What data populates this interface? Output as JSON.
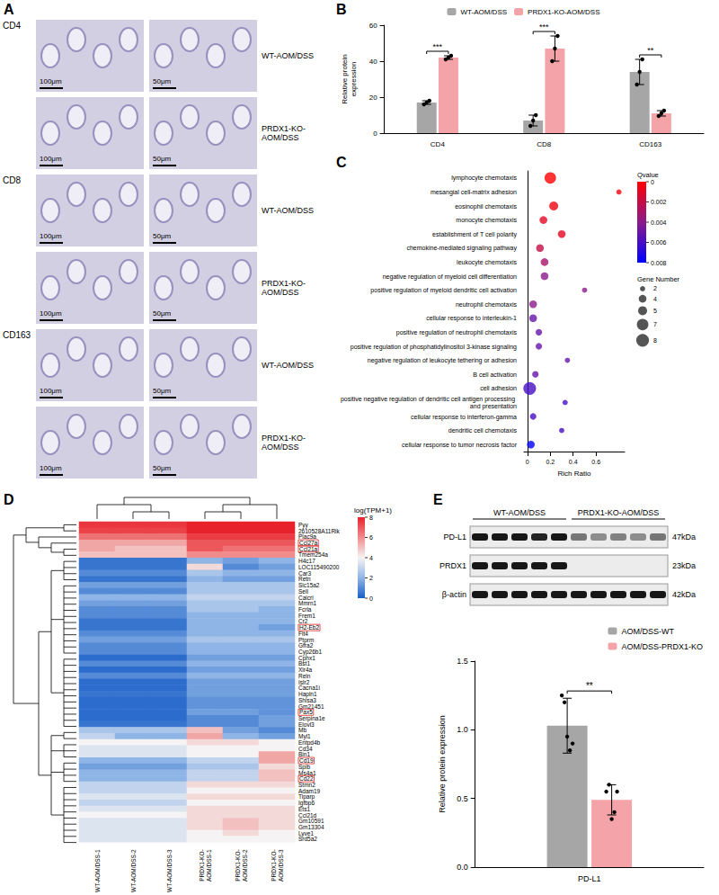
{
  "panel_letters": [
    "A",
    "B",
    "C",
    "D",
    "E"
  ],
  "panel_A": {
    "markers": [
      "CD4",
      "CD8",
      "CD163"
    ],
    "groups": [
      "WT-AOM/DSS",
      "PRDX1-KO-AOM/DSS"
    ],
    "scale_bars": [
      "100μm",
      "50μm"
    ]
  },
  "chart_data": [
    {
      "type": "bar",
      "ylabel": "Relative protein expression",
      "categories": [
        "CD4",
        "CD8",
        "CD163"
      ],
      "series": [
        {
          "name": "WT-AOM/DSS",
          "color": "#a6a6a6",
          "values": [
            17,
            7,
            34
          ],
          "errors": [
            1,
            3,
            7
          ],
          "points": [
            [
              16,
              17,
              18
            ],
            [
              4,
              7,
              10
            ],
            [
              27,
              34,
              41
            ]
          ]
        },
        {
          "name": "PRDX1-KO-AOM/DSS",
          "color": "#f4a3a8",
          "values": [
            42,
            47,
            11
          ],
          "errors": [
            1,
            7,
            1.5
          ],
          "points": [
            [
              41,
              42,
              43
            ],
            [
              40,
              47,
              54
            ],
            [
              9.5,
              11,
              12.5
            ]
          ]
        }
      ],
      "ylim": [
        0,
        60
      ],
      "yticks": [
        0,
        20,
        40,
        60
      ],
      "grid": false,
      "legend": "top",
      "annotations": [
        {
          "category": "CD4",
          "text": "***"
        },
        {
          "category": "CD8",
          "text": "***"
        },
        {
          "category": "CD163",
          "text": "**"
        }
      ]
    },
    {
      "type": "scatter",
      "xlabel": "Rich Ratio",
      "categories": [
        "lymphocyte chemotaxis",
        "mesangial cell-matrix adhesion",
        "eosinophil chemotaxis",
        "monocyte chemotaxis",
        "establishment of T cell polarity",
        "chemokine-mediated signaling pathway",
        "leukocyte chemotaxis",
        "negative regulation of myeloid cell differentiation",
        "positive regulation of myeloid dendritic cell activation",
        "neutrophil chemotaxis",
        "cellular response to interleukin-1",
        "positive regulation of neutrophil chemotaxis",
        "positive regulation of phosphatidylinositol 3-kinase signaling",
        "negative regulation of leukocyte tethering or adhesion",
        "B cell activation",
        "cell adhesion",
        "positive negative regulation of dendritic cell antigen processing and presentation",
        "cellular response to interferon-gamma",
        "dendritic cell chemotaxis",
        "cellular response to tumor necrosis factor"
      ],
      "x": [
        0.2,
        0.8,
        0.23,
        0.14,
        0.3,
        0.11,
        0.15,
        0.15,
        0.5,
        0.05,
        0.05,
        0.1,
        0.1,
        0.35,
        0.07,
        0.02,
        0.33,
        0.05,
        0.3,
        0.03
      ],
      "qvalues": [
        0,
        0.0003,
        0.0005,
        0.001,
        0.001,
        0.002,
        0.003,
        0.004,
        0.004,
        0.004,
        0.005,
        0.005,
        0.005,
        0.005,
        0.005,
        0.006,
        0.006,
        0.006,
        0.006,
        0.008
      ],
      "gene_numbers": [
        7,
        2,
        5,
        4,
        4,
        4,
        4,
        4,
        2,
        4,
        4,
        3,
        3,
        2,
        3,
        8,
        2,
        3,
        2,
        4
      ],
      "colorbar": {
        "title": "Qvalue",
        "range": [
          0,
          0.008
        ],
        "ticks": [
          0,
          0.002,
          0.004,
          0.006,
          0.008
        ]
      },
      "size_legend": {
        "title": "Gene Number",
        "values": [
          2,
          4,
          5,
          7,
          8
        ]
      },
      "xlim": [
        -0.03,
        0.85
      ],
      "xticks": [
        0,
        0.2,
        0.4,
        0.6
      ],
      "grid": false
    },
    {
      "type": "heatmap",
      "samples": [
        "WT-AOM/DSS-1",
        "WT-AOM/DSS-2",
        "WT-AOM/DSS-3",
        "PRDX1-KO-AOM/DSS-1",
        "PRDX1-KO-AOM/DSS-2",
        "PRDX1-KO-AOM/DSS-3"
      ],
      "genes": [
        "Pyy",
        "2610528A11Rik",
        "Plac9a",
        "Ccl27a",
        "Ccl21a",
        "Tmem254a",
        "H4c17",
        "LOC115490200",
        "Car3",
        "Retn",
        "Slc15a2",
        "Sell",
        "Calcrl",
        "Mmrn1",
        "Fcrla",
        "Frem1",
        "Cr2",
        "H2-Eb2",
        "Flt4",
        "Ptprm",
        "Gfra2",
        "Cyp26b1",
        "Cphx1",
        "Bst1",
        "Xlr4a",
        "Reln",
        "Islr2",
        "Cacna1i",
        "Hapln1",
        "Shisa3",
        "Gm21451",
        "Pax5",
        "Serpina1e",
        "Elovl3",
        "Mb",
        "Myl1",
        "Entpd4b",
        "Cd34",
        "Bin1",
        "Cd19",
        "Spib",
        "Ms4a1",
        "Cd22",
        "Stmn2",
        "Adam19",
        "Tiparp",
        "Igfbp6",
        "Ets1",
        "Ccl21d",
        "Gm10591",
        "Gm13304",
        "Lyve1",
        "Srd5a2"
      ],
      "boxed": [
        "Ccl27a",
        "Ccl21a",
        "H2-Eb2",
        "Pax5",
        "Cd19",
        "Cd22"
      ],
      "cells": [
        [
          7.6,
          7.6,
          7.6,
          8,
          8,
          8
        ],
        [
          7.4,
          7.4,
          7.4,
          8,
          8,
          8
        ],
        [
          6.5,
          6.5,
          6.5,
          7.5,
          7.5,
          7.5
        ],
        [
          5.5,
          5.5,
          5.5,
          7,
          7,
          7
        ],
        [
          5.5,
          5,
          5,
          7,
          6.5,
          6.5
        ],
        [
          5,
          5,
          5,
          6,
          6,
          6
        ],
        [
          0.5,
          0.5,
          0.5,
          2,
          1.5,
          2
        ],
        [
          0.5,
          0.5,
          0.5,
          4.5,
          1,
          1.5
        ],
        [
          1,
          1,
          1,
          2.5,
          2,
          2
        ],
        [
          0.5,
          0.5,
          0.5,
          2,
          1.5,
          1.5
        ],
        [
          1.5,
          1.5,
          1.5,
          2.5,
          2.5,
          2.5
        ],
        [
          1,
          1,
          1,
          2.5,
          2.5,
          2.5
        ],
        [
          2,
          2,
          2,
          3,
          3,
          3
        ],
        [
          1.5,
          1.5,
          1.5,
          2.5,
          2.5,
          2.5
        ],
        [
          1,
          1,
          1,
          2.5,
          2.5,
          2
        ],
        [
          1,
          1,
          1,
          2,
          2,
          2
        ],
        [
          0.5,
          0.5,
          0.5,
          2,
          2,
          2
        ],
        [
          0.5,
          0.5,
          0.5,
          2,
          2,
          1.5
        ],
        [
          1,
          1,
          1,
          2,
          2,
          2
        ],
        [
          1.5,
          1.5,
          1.5,
          2.5,
          2.5,
          2.5
        ],
        [
          1,
          1,
          1,
          2,
          2,
          2
        ],
        [
          1,
          1,
          1,
          2,
          2,
          2
        ],
        [
          0.3,
          0.3,
          0.3,
          1.5,
          1.5,
          1.5
        ],
        [
          1,
          1,
          1,
          2,
          2,
          2
        ],
        [
          0.3,
          0.3,
          0.3,
          1.5,
          1.5,
          1.5
        ],
        [
          1,
          1,
          1,
          2,
          2,
          2
        ],
        [
          0.3,
          0.3,
          0.3,
          1.5,
          1.5,
          1.5
        ],
        [
          0.3,
          0.3,
          0.3,
          1.5,
          1.5,
          1.5
        ],
        [
          0.5,
          0.5,
          0.5,
          1.5,
          1.5,
          1.5
        ],
        [
          0.3,
          0.3,
          0.3,
          1.2,
          1.2,
          1.2
        ],
        [
          0.3,
          0.3,
          0.3,
          1.2,
          1.2,
          1.2
        ],
        [
          0.3,
          0.3,
          0.3,
          1.5,
          1.5,
          1.2
        ],
        [
          0.3,
          0.3,
          0.3,
          1,
          1,
          1.5
        ],
        [
          0.5,
          0.5,
          0.5,
          1,
          1,
          1.5
        ],
        [
          2.5,
          2.5,
          2.5,
          5,
          1.5,
          1
        ],
        [
          3,
          2,
          2,
          5.5,
          2,
          1.5
        ],
        [
          4,
          4,
          4,
          4.5,
          4.5,
          4
        ],
        [
          3.5,
          3.5,
          3.5,
          4,
          4,
          4
        ],
        [
          3.5,
          3.5,
          3.5,
          4,
          4,
          5.5
        ],
        [
          2,
          2,
          2,
          3,
          3,
          5.5
        ],
        [
          1.5,
          1.5,
          1.5,
          2.5,
          2.5,
          4.5
        ],
        [
          2,
          2,
          2,
          3,
          3,
          5
        ],
        [
          2,
          2,
          2,
          3,
          3,
          5
        ],
        [
          3,
          3,
          3,
          4.5,
          4.5,
          4.5
        ],
        [
          3,
          3,
          3,
          4,
          4,
          4
        ],
        [
          3.5,
          3.5,
          3.5,
          4.5,
          4.5,
          4.5
        ],
        [
          3,
          3,
          3,
          4,
          4,
          4
        ],
        [
          3.5,
          3.5,
          3.5,
          4.5,
          4.5,
          4.5
        ],
        [
          4,
          4,
          4,
          4.5,
          4.5,
          4.5
        ],
        [
          3.5,
          3.5,
          3.5,
          4.5,
          5,
          4.5
        ],
        [
          3.5,
          3.5,
          3.5,
          4.5,
          5,
          4.5
        ],
        [
          3.5,
          3.5,
          3.5,
          4,
          4.5,
          4
        ],
        [
          3.5,
          3.5,
          3.5,
          4,
          4,
          4
        ]
      ],
      "colorbar": {
        "title": "log(TPM+1)",
        "range": [
          0,
          8
        ],
        "ticks": [
          0,
          2,
          4,
          6,
          8
        ]
      },
      "row_tree": [
        [
          [
            0,
            1
          ],
          [
            2,
            [
              3,
              [
                4,
                5
              ]
            ]
          ]
        ],
        [
          [
            [
              6,
              7,
              8,
              9
            ],
            [
              10,
              11,
              12,
              13,
              14,
              15,
              16,
              17,
              18,
              19,
              20,
              21
            ],
            [
              22,
              23,
              24,
              25,
              26,
              27,
              28,
              29,
              30,
              31,
              32,
              33
            ]
          ],
          [
            [
              34,
              35
            ],
            [
              36,
              37,
              38
            ],
            [
              39,
              40,
              41,
              42
            ],
            [
              43,
              44,
              45,
              46,
              47,
              48,
              49,
              50,
              51,
              52
            ]
          ]
        ]
      ],
      "column_tree": [
        [
          0,
          [
            1,
            2
          ]
        ],
        [
          [
            3,
            4
          ],
          5
        ]
      ]
    },
    {
      "type": "bar",
      "ylabel": "Relative protein expression",
      "categories": [
        "PD-L1"
      ],
      "series": [
        {
          "name": "AOM/DSS-WT",
          "color": "#a6a6a6",
          "values": [
            1.03
          ],
          "errors": [
            0.2
          ],
          "points": [
            [
              1.25,
              1.2,
              0.95,
              0.85,
              0.9
            ]
          ]
        },
        {
          "name": "AOM/DSS-PRDX1-KO",
          "color": "#f4a3a8",
          "values": [
            0.49
          ],
          "errors": [
            0.11
          ],
          "points": [
            [
              0.55,
              0.6,
              0.35,
              0.4,
              0.55
            ]
          ]
        }
      ],
      "ylim": [
        0,
        1.5
      ],
      "yticks": [
        {
          "value": 0,
          "label": "0.0"
        },
        0.5,
        {
          "value": 1,
          "label": "1.0"
        },
        1.5
      ],
      "grid": false,
      "legend": "top-right",
      "annotations": [
        {
          "category": "PD-L1",
          "text": "**"
        }
      ]
    }
  ],
  "blot_E": {
    "groups": [
      {
        "label": "WT-AOM/DSS",
        "lanes": 5
      },
      {
        "label": "PRDX1-KO-AOM/DSS",
        "lanes": 5
      }
    ],
    "bands": [
      {
        "protein": "PD-L1",
        "size": "47kDa",
        "intensity": [
          0.9,
          0.9,
          0.9,
          0.85,
          0.9,
          0.5,
          0.4,
          0.45,
          0.4,
          0.5
        ]
      },
      {
        "protein": "PRDX1",
        "size": "23kDa",
        "intensity": [
          0.9,
          0.9,
          0.9,
          0.9,
          0.9,
          0,
          0,
          0,
          0,
          0
        ]
      },
      {
        "protein": "β-actin",
        "size": "42kDa",
        "intensity": [
          0.9,
          0.9,
          0.9,
          0.9,
          0.9,
          0.9,
          0.9,
          0.9,
          0.9,
          0.9
        ]
      }
    ]
  }
}
